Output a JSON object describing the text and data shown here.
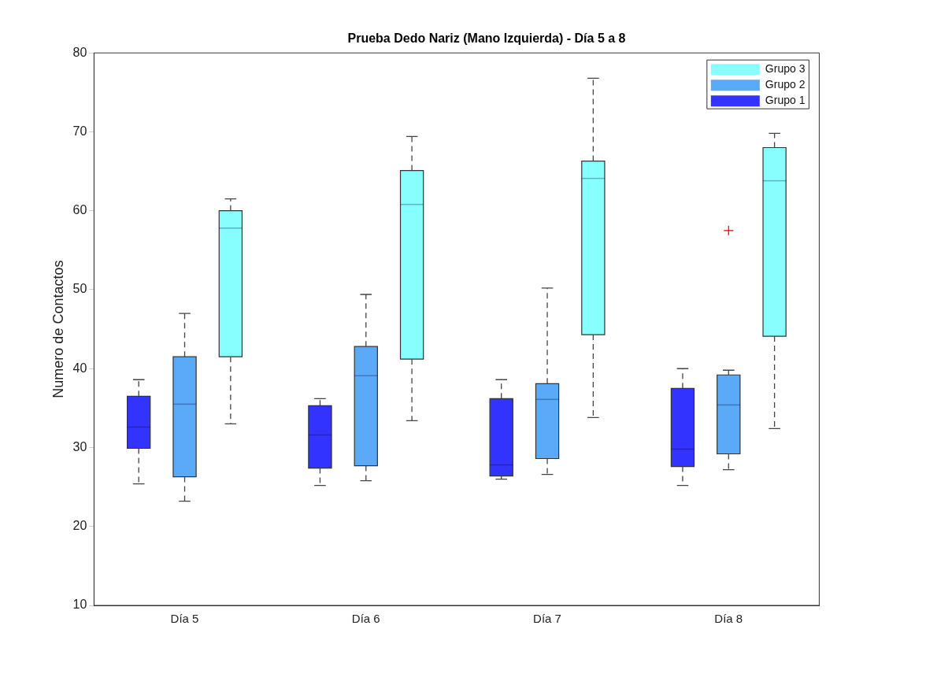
{
  "chart_data": {
    "type": "box",
    "title": "Prueba Dedo Nariz (Mano Izquierda) - Día 5 a 8",
    "ylabel": "Numero de Contactos",
    "categories": [
      "Día 5",
      "Día 6",
      "Día 7",
      "Día 8"
    ],
    "series": [
      {
        "name": "Grupo 1",
        "color": "#3333ff",
        "boxes": [
          {
            "low": 25.4,
            "q1": 29.9,
            "median": 32.6,
            "q3": 36.5,
            "high": 38.6
          },
          {
            "low": 25.2,
            "q1": 27.4,
            "median": 31.6,
            "q3": 35.3,
            "high": 36.2
          },
          {
            "low": 26,
            "q1": 26.4,
            "median": 27.8,
            "q3": 36.2,
            "high": 38.6
          },
          {
            "low": 25.2,
            "q1": 27.6,
            "median": 29.8,
            "q3": 37.5,
            "high": 40
          }
        ]
      },
      {
        "name": "Grupo 2",
        "color": "#5aaaf8",
        "boxes": [
          {
            "low": 23.2,
            "q1": 26.3,
            "median": 35.5,
            "q3": 41.5,
            "high": 47
          },
          {
            "low": 25.8,
            "q1": 27.7,
            "median": 39.1,
            "q3": 42.8,
            "high": 49.4
          },
          {
            "low": 26.6,
            "q1": 28.6,
            "median": 36.1,
            "q3": 38.1,
            "high": 50.2
          },
          {
            "low": 27.2,
            "q1": 29.2,
            "median": 35.4,
            "q3": 39.2,
            "high": 39.8,
            "outliers": [
              57.5
            ]
          }
        ]
      },
      {
        "name": "Grupo 3",
        "color": "#88ffff",
        "boxes": [
          {
            "low": 33,
            "q1": 41.5,
            "median": 57.8,
            "q3": 60,
            "high": 61.5
          },
          {
            "low": 33.4,
            "q1": 41.2,
            "median": 60.8,
            "q3": 65.1,
            "high": 69.4
          },
          {
            "low": 33.8,
            "q1": 44.3,
            "median": 64.1,
            "q3": 66.3,
            "high": 76.8
          },
          {
            "low": 32.4,
            "q1": 44.1,
            "median": 63.8,
            "q3": 68,
            "high": 69.8
          }
        ]
      }
    ],
    "ylim": [
      10,
      80
    ],
    "yticks": [
      10,
      20,
      30,
      40,
      50,
      60,
      70,
      80
    ],
    "grid": false,
    "legend": "top right"
  }
}
